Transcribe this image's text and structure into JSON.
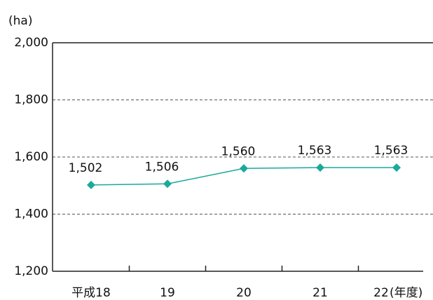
{
  "chart_data": {
    "type": "line",
    "y_label": "(ha)",
    "x_label": "(年度)",
    "categories": [
      "平成18",
      "19",
      "20",
      "21",
      "22"
    ],
    "values": [
      1502,
      1506,
      1560,
      1563,
      1563
    ],
    "value_labels": [
      "1,502",
      "1,506",
      "1,560",
      "1,563",
      "1,563"
    ],
    "color": "#1aa99a",
    "ylim": [
      1200,
      2000
    ],
    "yticks": [
      {
        "value": 1200,
        "label": "1,200"
      },
      {
        "value": 1400,
        "label": "1,400"
      },
      {
        "value": 1600,
        "label": "1,600"
      },
      {
        "value": 1800,
        "label": "1,800"
      },
      {
        "value": 2000,
        "label": "2,000"
      }
    ],
    "grid": true
  }
}
